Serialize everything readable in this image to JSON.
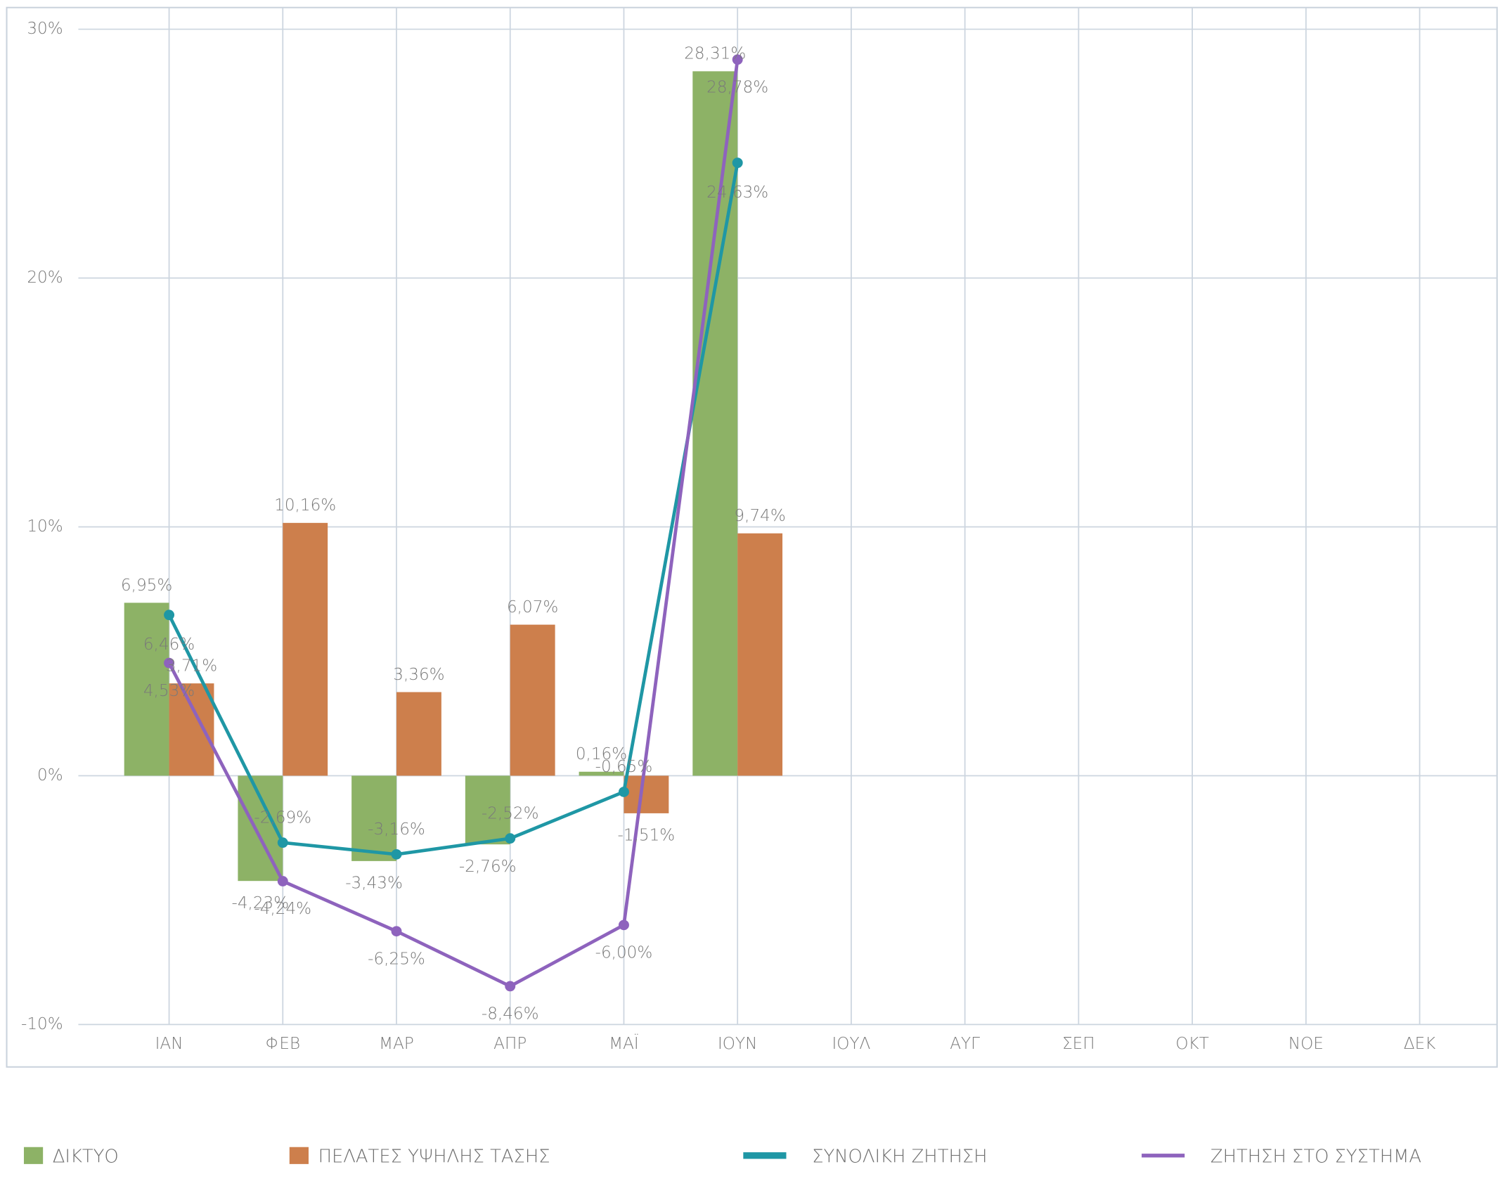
{
  "chart_data": {
    "type": "bar",
    "categories": [
      "ΙΑΝ",
      "ΦΕΒ",
      "ΜΑΡ",
      "ΑΠΡ",
      "ΜΑΪ",
      "ΙΟΥΝ",
      "ΙΟΥΛ",
      "ΑΥΓ",
      "ΣΕΠ",
      "ΟΚΤ",
      "ΝΟΕ",
      "ΔΕΚ"
    ],
    "series": [
      {
        "name": "ΔΙΚΤΥΟ",
        "type": "bar",
        "color": "#8db266",
        "values": [
          6.95,
          -4.23,
          -3.43,
          -2.76,
          0.16,
          28.31,
          null,
          null,
          null,
          null,
          null,
          null
        ],
        "value_labels": [
          "6,95%",
          "-4,23%",
          "-3,43%",
          "-2,76%",
          "0,16%",
          "28,31%",
          null,
          null,
          null,
          null,
          null,
          null
        ]
      },
      {
        "name": "ΠΕΛΑΤΕΣ ΥΨΗΛΗΣ ΤΑΣΗΣ",
        "type": "bar",
        "color": "#cd7f4c",
        "values": [
          3.71,
          10.16,
          3.36,
          6.07,
          -1.51,
          9.74,
          null,
          null,
          null,
          null,
          null,
          null
        ],
        "value_labels": [
          "3,71%",
          "10,16%",
          "3,36%",
          "6,07%",
          "-1,51%",
          "9,74%",
          null,
          null,
          null,
          null,
          null,
          null
        ]
      },
      {
        "name": "ΣΥΝΟΛΙΚΗ ΖΗΤΗΣΗ",
        "type": "line",
        "color": "#1f97a5",
        "values": [
          6.46,
          -2.69,
          -3.16,
          -2.52,
          -0.65,
          24.63,
          null,
          null,
          null,
          null,
          null,
          null
        ],
        "value_labels": [
          "6,46%",
          "-2,69%",
          "-3,16%",
          "-2,52%",
          "-0,65%",
          "24,63%",
          null,
          null,
          null,
          null,
          null,
          null
        ]
      },
      {
        "name": "ΖΗΤΗΣΗ ΣΤΟ ΣΥΣΤΗΜΑ",
        "type": "line",
        "color": "#8e63bd",
        "values": [
          4.53,
          -4.24,
          -6.25,
          -8.46,
          -6.0,
          28.78,
          null,
          null,
          null,
          null,
          null,
          null
        ],
        "value_labels": [
          "4,53%",
          "-4,24%",
          "-6,25%",
          "-8,46%",
          "-6,00%",
          "28,78%",
          null,
          null,
          null,
          null,
          null,
          null
        ]
      }
    ],
    "ylim": [
      -10,
      30
    ],
    "yticks": [
      {
        "value": -10,
        "label": "-10%"
      },
      {
        "value": 0,
        "label": "0%"
      },
      {
        "value": 10,
        "label": "10%"
      },
      {
        "value": 20,
        "label": "20%"
      },
      {
        "value": 30,
        "label": "30%"
      }
    ],
    "grid": true,
    "legend": "bottom"
  }
}
